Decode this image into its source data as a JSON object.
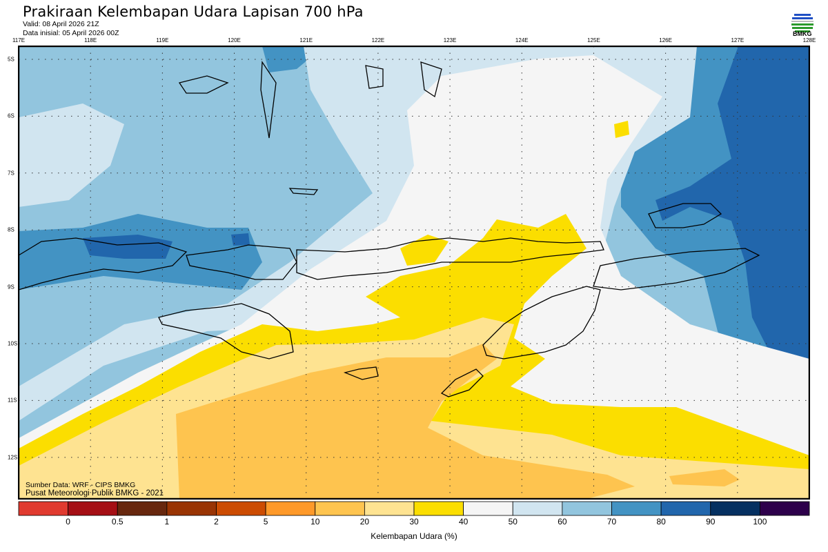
{
  "header": {
    "title": "Prakiraan Kelembapan Udara Lapisan 700 hPa",
    "valid": "Valid: 08 April 2026 21Z",
    "initial": "Data inisial: 05 April 2026 00Z",
    "logo_text": "BMKG"
  },
  "map": {
    "lon_labels": [
      "117E",
      "118E",
      "119E",
      "120E",
      "121E",
      "122E",
      "123E",
      "124E",
      "125E",
      "126E",
      "127E",
      "128E"
    ],
    "lat_labels": [
      "5S",
      "6S",
      "7S",
      "8S",
      "9S",
      "10S",
      "11S",
      "12S"
    ],
    "lon_range": [
      117,
      128
    ],
    "lat_range": [
      -4.77,
      -12.73
    ]
  },
  "credits": {
    "source": "Sumber Data: WRF - CIPS BMKG",
    "org": "Pusat Meteorologi Publik BMKG - 2021"
  },
  "colorbar": {
    "title": "Kelembapan Udara (%)",
    "colors": [
      "#e03a2f",
      "#a50f15",
      "#67270e",
      "#993404",
      "#cc4c02",
      "#fe9929",
      "#fec44f",
      "#fee391",
      "#fbde00",
      "#f5f5f5",
      "#d1e5f0",
      "#92c5de",
      "#4393c3",
      "#2166ac",
      "#053061",
      "#2d004b"
    ],
    "labels": [
      "0",
      "0.5",
      "1",
      "2",
      "5",
      "10",
      "20",
      "30",
      "40",
      "50",
      "60",
      "70",
      "80",
      "90",
      "100"
    ]
  }
}
